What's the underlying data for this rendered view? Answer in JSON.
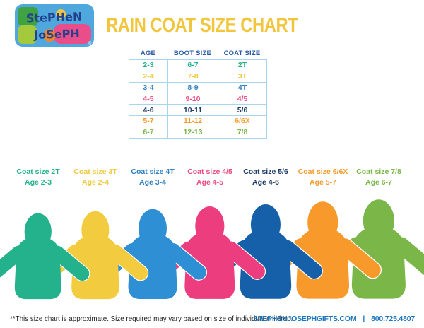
{
  "header": {
    "logo": {
      "line1": "StePHeN",
      "line2": "JoSePH",
      "registered_mark": "®"
    },
    "title": "RAIN COAT SIZE CHART",
    "title_color": "#F2C63C"
  },
  "size_table": {
    "columns": [
      "AGE",
      "BOOT SIZE",
      "COAT SIZE"
    ],
    "header_color": "#2B5AA6",
    "border_color": "#A9D5EC",
    "rows": [
      {
        "age": "2-3",
        "boot_size": "6-7",
        "coat_size": "2T",
        "color": "#23B28B"
      },
      {
        "age": "2-4",
        "boot_size": "7-8",
        "coat_size": "3T",
        "color": "#F0C93C"
      },
      {
        "age": "3-4",
        "boot_size": "8-9",
        "coat_size": "4T",
        "color": "#2E7FC1"
      },
      {
        "age": "4-5",
        "boot_size": "9-10",
        "coat_size": "4/5",
        "color": "#EC4B82"
      },
      {
        "age": "4-6",
        "boot_size": "10-11",
        "coat_size": "5/6",
        "color": "#1C3A66"
      },
      {
        "age": "5-7",
        "boot_size": "11-12",
        "coat_size": "6/6X",
        "color": "#F79A2B"
      },
      {
        "age": "6-7",
        "boot_size": "12-13",
        "coat_size": "7/8",
        "color": "#7AB648"
      }
    ]
  },
  "coats": [
    {
      "size_label": "Coat size 2T",
      "age_label": "Age 2-3",
      "color": "#23B28B",
      "label_color": "#23B28B"
    },
    {
      "size_label": "Coat size 3T",
      "age_label": "Age 2-4",
      "color": "#F2CC3E",
      "label_color": "#F0C93C"
    },
    {
      "size_label": "Coat size 4T",
      "age_label": "Age 3-4",
      "color": "#2E8FD5",
      "label_color": "#2E7FC1"
    },
    {
      "size_label": "Coat size 4/5",
      "age_label": "Age 4-5",
      "color": "#EC3E7F",
      "label_color": "#EC4B82"
    },
    {
      "size_label": "Coat size 5/6",
      "age_label": "Age 4-6",
      "color": "#1560A8",
      "label_color": "#1C3A66"
    },
    {
      "size_label": "Coat size 6/6X",
      "age_label": "Age 5-7",
      "color": "#F79A2B",
      "label_color": "#F79A2B"
    },
    {
      "size_label": "Coat size 7/8",
      "age_label": "Age 6-7",
      "color": "#7AB648",
      "label_color": "#7AB648"
    }
  ],
  "footer": {
    "disclaimer": "**This size chart is approximate. Size required may vary based on size of individual children.",
    "website": "STEPHENJOSEPHGIFTS.COM",
    "separator": "|",
    "phone": "800.725.4807",
    "link_color": "#1C75BC"
  }
}
